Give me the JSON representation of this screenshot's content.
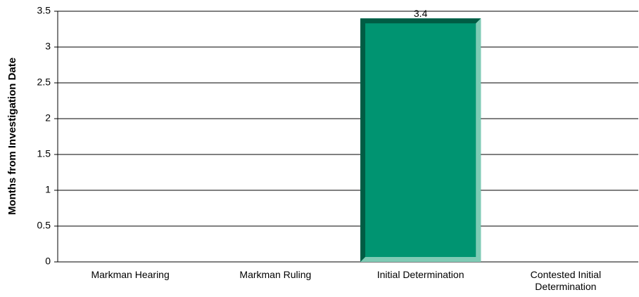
{
  "chart_data": {
    "type": "bar",
    "y_label": "Months from Investigation Date",
    "categories": [
      "Markman Hearing",
      "Markman Ruling",
      "Initial Determination",
      "Contested Initial Determination"
    ],
    "values": [
      null,
      null,
      3.4,
      null
    ],
    "color": "#009471",
    "ylim": [
      0,
      3.5
    ],
    "yticks": [
      0,
      0.5,
      1,
      1.5,
      2,
      2.5,
      3,
      3.5
    ],
    "grid": true
  }
}
